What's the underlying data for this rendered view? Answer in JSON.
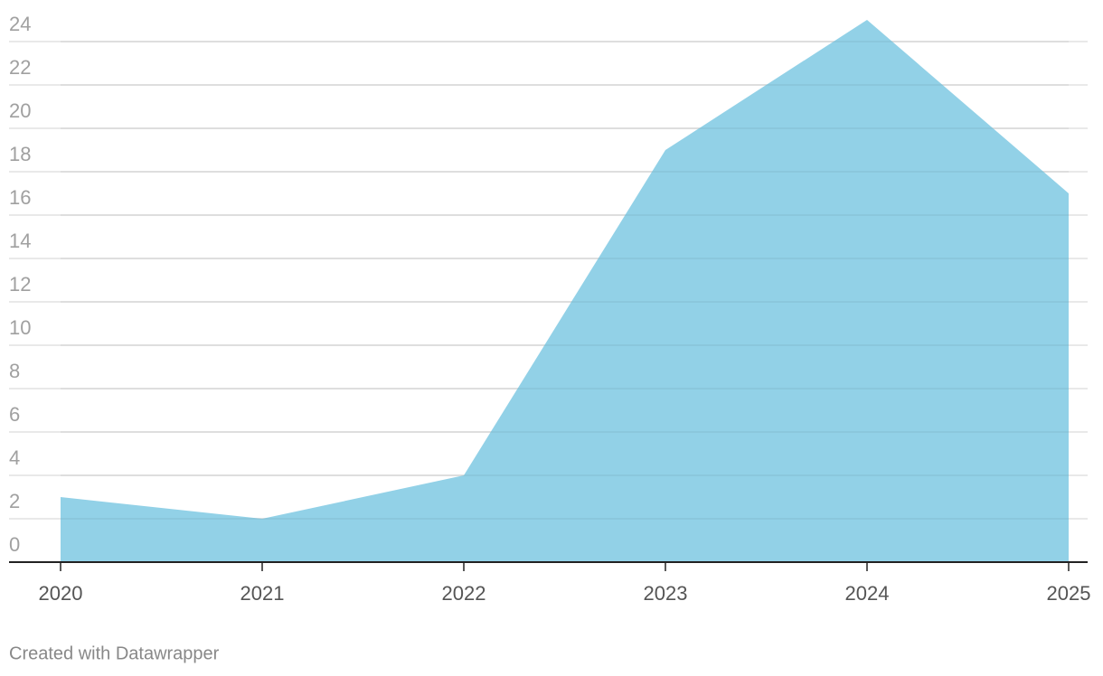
{
  "chart_data": {
    "type": "area",
    "x": [
      2020,
      2021,
      2022,
      2023,
      2024,
      2025
    ],
    "values": [
      3,
      2,
      4,
      19,
      25,
      17
    ],
    "color": "#8ccfe6",
    "xlim": [
      2020,
      2025
    ],
    "xticks": [
      2020,
      2021,
      2022,
      2023,
      2024,
      2025
    ],
    "ylim": [
      0,
      25
    ],
    "yticks": [
      0,
      2,
      4,
      6,
      8,
      10,
      12,
      14,
      16,
      18,
      20,
      22,
      24
    ],
    "grid": true
  },
  "credit": "Created with Datawrapper"
}
